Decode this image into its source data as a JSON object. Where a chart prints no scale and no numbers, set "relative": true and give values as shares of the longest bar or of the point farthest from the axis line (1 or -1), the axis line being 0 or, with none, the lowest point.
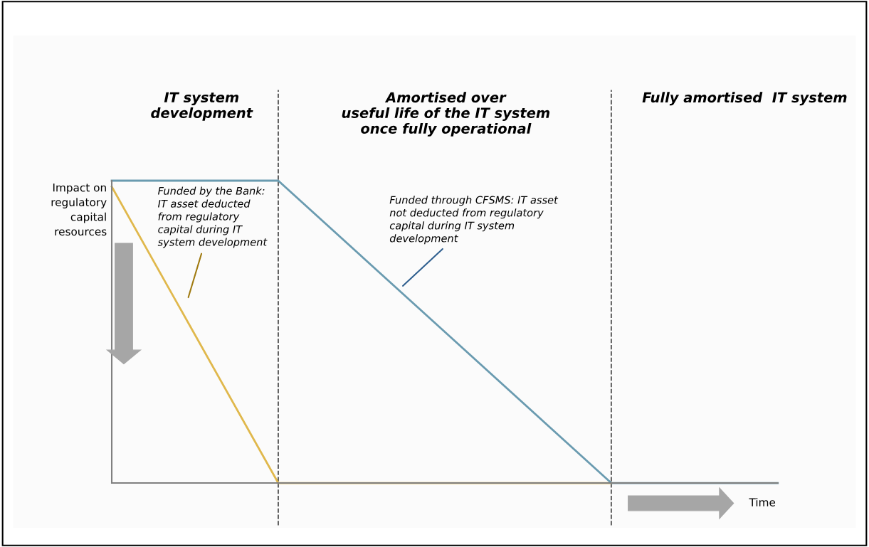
{
  "chart_data": {
    "type": "line",
    "relative": true,
    "grid": false,
    "legend": false,
    "marker": "none",
    "line_style": "solid",
    "categories": [
      null,
      null,
      null,
      null,
      null
    ],
    "series": [
      {
        "color": "#e0b84c",
        "values": [
          0.98,
          0,
          0,
          0,
          null
        ]
      },
      {
        "color": "#6a9bb0",
        "values": [
          1,
          1,
          0.5,
          0,
          0
        ]
      }
    ],
    "ylabel": "Impact on\nregulatory\ncapital\nresources",
    "xlabel": "Time",
    "annotations": [
      "IT system\ndevelopment",
      "Amortised over\nuseful life of the IT system\nonce fully operational",
      "Fully amortised  IT system",
      "Funded by the Bank:\nIT asset deducted\nfrom regulatory\ncapital during IT\nsystem development",
      "Funded through CFSMS: IT asset\nnot deducted from regulatory\ncapital during IT system\ndevelopment"
    ]
  }
}
